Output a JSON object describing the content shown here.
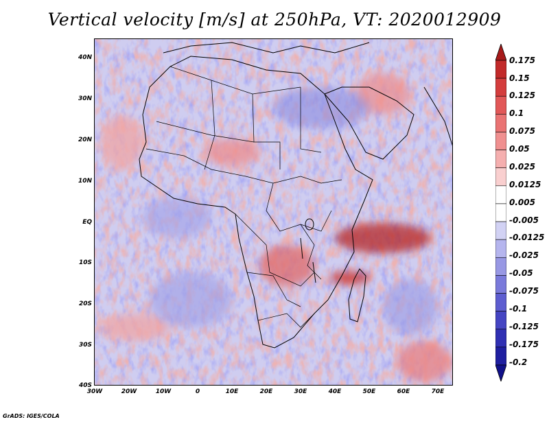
{
  "title": "Vertical velocity [m/s] at 250hPa, VT: 2020012909",
  "credit": "GrADS: IGES/COLA",
  "map": {
    "region": "Africa",
    "lon_range": [
      -30,
      75
    ],
    "lat_range": [
      -40,
      45
    ],
    "lat_labels": [
      "40N",
      "30N",
      "20N",
      "10N",
      "EQ",
      "10S",
      "20S",
      "30S",
      "40S"
    ],
    "lon_labels": [
      "30W",
      "20W",
      "10W",
      "0",
      "10E",
      "20E",
      "30E",
      "40E",
      "50E",
      "60E",
      "70E"
    ]
  },
  "colorbar": {
    "labels": [
      "0.175",
      "0.15",
      "0.125",
      "0.1",
      "0.075",
      "0.05",
      "0.025",
      "0.0125",
      "0.005",
      "-0.005",
      "-0.0125",
      "-0.025",
      "-0.05",
      "-0.075",
      "-0.1",
      "-0.125",
      "-0.175",
      "-0.2"
    ],
    "colors": [
      "#a71a1a",
      "#c22a2a",
      "#d43d3d",
      "#e25858",
      "#ea7373",
      "#f09090",
      "#f5afaf",
      "#f9cfcf",
      "#ffffff",
      "#ffffff",
      "#d2d2f4",
      "#b5b5ee",
      "#9898e4",
      "#7a7adb",
      "#5d5dd0",
      "#4545c3",
      "#3030b3",
      "#1f1fa0",
      "#10108a"
    ]
  }
}
